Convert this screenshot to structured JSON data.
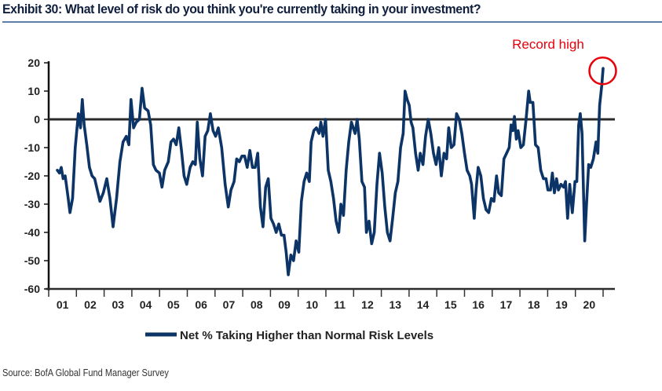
{
  "header": {
    "title": "Exhibit 30: What level of risk do you think you're currently taking in your investment?"
  },
  "footer": {
    "source": "Source: BofA Global Fund Manager Survey"
  },
  "chart_data": {
    "type": "line",
    "title": "Exhibit 30: What level of risk do you think you're currently taking in your investment?",
    "xlabel": "",
    "ylabel": "",
    "ylim": [
      -60,
      20
    ],
    "xlim": [
      2001,
      2021.4
    ],
    "yticks": [
      20,
      10,
      0,
      -10,
      -20,
      -30,
      -40,
      -50,
      -60
    ],
    "ytick_labels": [
      "20",
      "10",
      "0",
      "-10",
      "-20",
      "-30",
      "-40",
      "-50",
      "-60"
    ],
    "xtick_labels": [
      "01",
      "02",
      "03",
      "04",
      "05",
      "06",
      "07",
      "08",
      "09",
      "10",
      "11",
      "12",
      "13",
      "14",
      "15",
      "16",
      "17",
      "18",
      "19",
      "20"
    ],
    "reference_line": 0,
    "grid": false,
    "legend_position": "bottom-center",
    "annotation": {
      "text": "Record high",
      "x": 2020.95,
      "y": 18,
      "color": "#e8000b"
    },
    "series": [
      {
        "name": "Net % Taking Higher than Normal Risk Levels",
        "color": "#0c3466",
        "points": [
          [
            2001.3,
            -18
          ],
          [
            2001.38,
            -19
          ],
          [
            2001.45,
            -17
          ],
          [
            2001.52,
            -21
          ],
          [
            2001.6,
            -20
          ],
          [
            2001.7,
            -27
          ],
          [
            2001.78,
            -33
          ],
          [
            2001.88,
            -28
          ],
          [
            2001.98,
            -10
          ],
          [
            2002.05,
            -3
          ],
          [
            2002.1,
            2
          ],
          [
            2002.18,
            -3
          ],
          [
            2002.25,
            7
          ],
          [
            2002.32,
            -2
          ],
          [
            2002.42,
            -9
          ],
          [
            2002.52,
            -17
          ],
          [
            2002.62,
            -20
          ],
          [
            2002.72,
            -21
          ],
          [
            2002.82,
            -25
          ],
          [
            2002.92,
            -29
          ],
          [
            2003.05,
            -26
          ],
          [
            2003.18,
            -21
          ],
          [
            2003.3,
            -28
          ],
          [
            2003.42,
            -38
          ],
          [
            2003.55,
            -28
          ],
          [
            2003.68,
            -15
          ],
          [
            2003.8,
            -8
          ],
          [
            2003.92,
            -6
          ],
          [
            2004.02,
            -9
          ],
          [
            2004.1,
            7
          ],
          [
            2004.2,
            -3
          ],
          [
            2004.3,
            -1
          ],
          [
            2004.42,
            0
          ],
          [
            2004.52,
            11
          ],
          [
            2004.62,
            4
          ],
          [
            2004.75,
            3
          ],
          [
            2004.85,
            -2
          ],
          [
            2004.95,
            -16
          ],
          [
            2005.05,
            -18
          ],
          [
            2005.18,
            -19
          ],
          [
            2005.28,
            -24
          ],
          [
            2005.38,
            -18
          ],
          [
            2005.52,
            -15
          ],
          [
            2005.62,
            -8
          ],
          [
            2005.72,
            -7
          ],
          [
            2005.82,
            -9
          ],
          [
            2005.92,
            -3
          ],
          [
            2006.02,
            -11
          ],
          [
            2006.12,
            -20
          ],
          [
            2006.22,
            -23
          ],
          [
            2006.35,
            -17
          ],
          [
            2006.45,
            -15
          ],
          [
            2006.55,
            -16
          ],
          [
            2006.62,
            -1
          ],
          [
            2006.72,
            -14
          ],
          [
            2006.82,
            -20
          ],
          [
            2006.92,
            -6
          ],
          [
            2007.02,
            -4
          ],
          [
            2007.12,
            2
          ],
          [
            2007.22,
            -4
          ],
          [
            2007.32,
            -6
          ],
          [
            2007.42,
            -3
          ],
          [
            2007.55,
            -10
          ],
          [
            2007.68,
            -23
          ],
          [
            2007.8,
            -31
          ],
          [
            2007.9,
            -25
          ],
          [
            2008.02,
            -22
          ],
          [
            2008.12,
            -14
          ],
          [
            2008.22,
            -15
          ],
          [
            2008.32,
            -13
          ],
          [
            2008.42,
            -13
          ],
          [
            2008.52,
            -17
          ],
          [
            2008.62,
            -11
          ],
          [
            2008.72,
            -17
          ],
          [
            2008.82,
            -17
          ],
          [
            2008.92,
            -12
          ],
          [
            2009.02,
            -31
          ],
          [
            2009.12,
            -38
          ],
          [
            2009.22,
            -24
          ],
          [
            2009.32,
            -21
          ],
          [
            2009.42,
            -35
          ],
          [
            2009.52,
            -37
          ],
          [
            2009.62,
            -40
          ],
          [
            2009.72,
            -37
          ],
          [
            2009.82,
            -41
          ],
          [
            2009.92,
            -41
          ],
          [
            2010.0,
            -47
          ],
          [
            2010.08,
            -55
          ],
          [
            2010.18,
            -48
          ],
          [
            2010.28,
            -50
          ],
          [
            2010.38,
            -43
          ],
          [
            2010.48,
            -47
          ],
          [
            2010.58,
            -29
          ],
          [
            2010.68,
            -22
          ],
          [
            2010.78,
            -19
          ],
          [
            2010.88,
            -22
          ],
          [
            2010.95,
            -8
          ],
          [
            2011.05,
            -4
          ],
          [
            2011.15,
            -3
          ],
          [
            2011.25,
            -5
          ],
          [
            2011.32,
            -1
          ],
          [
            2011.4,
            -6
          ],
          [
            2011.5,
            0
          ],
          [
            2011.6,
            -18
          ],
          [
            2011.7,
            -22
          ],
          [
            2011.8,
            -28
          ],
          [
            2011.9,
            -36
          ],
          [
            2012.0,
            -40
          ],
          [
            2012.08,
            -30
          ],
          [
            2012.18,
            -34
          ],
          [
            2012.28,
            -18
          ],
          [
            2012.38,
            -8
          ],
          [
            2012.48,
            -1
          ],
          [
            2012.55,
            -3
          ],
          [
            2012.62,
            -5
          ],
          [
            2012.7,
            0
          ],
          [
            2012.78,
            -7
          ],
          [
            2012.88,
            -22
          ],
          [
            2012.98,
            -24
          ],
          [
            2013.05,
            -40
          ],
          [
            2013.15,
            -36
          ],
          [
            2013.25,
            -44
          ],
          [
            2013.35,
            -40
          ],
          [
            2013.45,
            -23
          ],
          [
            2013.55,
            -12
          ],
          [
            2013.65,
            -19
          ],
          [
            2013.75,
            -31
          ],
          [
            2013.85,
            -40
          ],
          [
            2013.95,
            -43
          ],
          [
            2014.05,
            -35
          ],
          [
            2014.15,
            -26
          ],
          [
            2014.25,
            -22
          ],
          [
            2014.35,
            -10
          ],
          [
            2014.45,
            -5
          ],
          [
            2014.52,
            10
          ],
          [
            2014.6,
            7
          ],
          [
            2014.68,
            5
          ],
          [
            2014.75,
            -1
          ],
          [
            2014.82,
            -3
          ],
          [
            2014.92,
            -12
          ],
          [
            2015.02,
            -18
          ],
          [
            2015.1,
            -12
          ],
          [
            2015.2,
            -16
          ],
          [
            2015.3,
            -6
          ],
          [
            2015.4,
            0
          ],
          [
            2015.5,
            -5
          ],
          [
            2015.6,
            -12
          ],
          [
            2015.7,
            -16
          ],
          [
            2015.8,
            -10
          ],
          [
            2015.9,
            -20
          ],
          [
            2016.0,
            -12
          ],
          [
            2016.1,
            -14
          ],
          [
            2016.18,
            -3
          ],
          [
            2016.28,
            -10
          ],
          [
            2016.38,
            -9
          ],
          [
            2016.48,
            2
          ],
          [
            2016.58,
            0
          ],
          [
            2016.68,
            -5
          ],
          [
            2016.78,
            -12
          ],
          [
            2016.88,
            -18
          ],
          [
            2016.98,
            -20
          ],
          [
            2017.05,
            -23
          ],
          [
            2017.15,
            -35
          ],
          [
            2017.22,
            -25
          ],
          [
            2017.3,
            -17
          ],
          [
            2017.4,
            -20
          ],
          [
            2017.5,
            -28
          ],
          [
            2017.6,
            -32
          ],
          [
            2017.7,
            -33
          ],
          [
            2017.8,
            -28
          ],
          [
            2017.9,
            -29
          ],
          [
            2018.0,
            -20
          ],
          [
            2018.08,
            -26
          ],
          [
            2018.18,
            -27
          ],
          [
            2018.28,
            -14
          ],
          [
            2018.38,
            -12
          ],
          [
            2018.48,
            -10
          ],
          [
            2018.55,
            -2
          ],
          [
            2018.62,
            -4
          ],
          [
            2018.68,
            1
          ],
          [
            2018.75,
            -7
          ],
          [
            2018.82,
            -4
          ],
          [
            2018.92,
            -10
          ],
          [
            2019.02,
            -9
          ],
          [
            2019.12,
            0
          ],
          [
            2019.22,
            10
          ],
          [
            2019.28,
            6
          ],
          [
            2019.38,
            6
          ],
          [
            2019.48,
            -9
          ],
          [
            2019.58,
            -10
          ],
          [
            2019.68,
            -18
          ],
          [
            2019.78,
            -21
          ],
          [
            2019.88,
            -21
          ],
          [
            2019.95,
            -25
          ],
          [
            2020.05,
            -25
          ],
          [
            2020.12,
            -19
          ],
          [
            2020.2,
            -26
          ],
          [
            2020.28,
            -21
          ],
          [
            2020.35,
            -25
          ],
          [
            2020.45,
            -23
          ],
          [
            2020.55,
            -24
          ],
          [
            2020.62,
            -22
          ],
          [
            2020.7,
            -35
          ],
          [
            2020.78,
            -23
          ],
          [
            2020.88,
            -33
          ],
          [
            2020.98,
            -22
          ],
          [
            2021.05,
            -22
          ],
          [
            2021.12,
            -2
          ],
          [
            2021.18,
            2
          ],
          [
            2021.25,
            -5
          ],
          [
            2021.35,
            -43
          ],
          [
            2021.42,
            -30
          ],
          [
            2021.5,
            -16
          ],
          [
            2021.58,
            -17
          ],
          [
            2021.68,
            -14
          ],
          [
            2021.78,
            -8
          ],
          [
            2021.85,
            -12
          ],
          [
            2021.92,
            5
          ],
          [
            2022.0,
            12
          ],
          [
            2022.05,
            18
          ]
        ]
      }
    ]
  }
}
